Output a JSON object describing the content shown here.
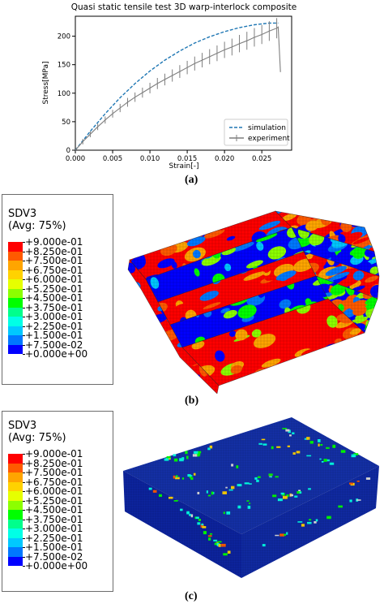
{
  "chart_data": {
    "type": "line",
    "title": "Quasi static tensile test 3D warp-interlock composite",
    "xlabel": "Strain[-]",
    "ylabel": "Stress[MPa]",
    "xlim": [
      0,
      0.029
    ],
    "ylim": [
      0,
      235
    ],
    "xticks": [
      "0.000",
      "0.005",
      "0.010",
      "0.015",
      "0.020",
      "0.025"
    ],
    "yticks": [
      "0",
      "50",
      "100",
      "150",
      "200"
    ],
    "legend_position": "lower-right",
    "grid": false,
    "series": [
      {
        "name": "simulation",
        "style": "dashed",
        "color": "#1f77b4",
        "x": [
          0,
          0.002,
          0.004,
          0.006,
          0.008,
          0.01,
          0.012,
          0.014,
          0.016,
          0.018,
          0.02,
          0.022,
          0.024,
          0.026,
          0.0272
        ],
        "y": [
          0,
          33,
          64,
          92,
          117,
          139,
          158,
          174,
          188,
          199,
          208,
          215,
          220,
          223,
          223
        ]
      },
      {
        "name": "experiment",
        "style": "solid",
        "color": "#7f7f7f",
        "x": [
          0,
          0.001,
          0.002,
          0.003,
          0.004,
          0.005,
          0.006,
          0.007,
          0.008,
          0.009,
          0.01,
          0.011,
          0.012,
          0.013,
          0.014,
          0.015,
          0.016,
          0.017,
          0.018,
          0.019,
          0.02,
          0.021,
          0.022,
          0.023,
          0.024,
          0.025,
          0.026,
          0.027,
          0.0272,
          0.0275
        ],
        "y": [
          0,
          15,
          28,
          41,
          53,
          64,
          74,
          84,
          93,
          101,
          109,
          117,
          124,
          131,
          138,
          145,
          152,
          158,
          164,
          170,
          176,
          181,
          187,
          192,
          198,
          203,
          209,
          214,
          216,
          137
        ]
      }
    ]
  },
  "captions": {
    "a": "(a)",
    "b": "(b)",
    "c": "(c)"
  },
  "legends": [
    {
      "title1": "SDV3",
      "title2": "(Avg: 75%)",
      "values": [
        "+9.000e-01",
        "+8.250e-01",
        "+7.500e-01",
        "+6.750e-01",
        "+6.000e-01",
        "+5.250e-01",
        "+4.500e-01",
        "+3.750e-01",
        "+3.000e-01",
        "+2.250e-01",
        "+1.500e-01",
        "+7.500e-02",
        "+0.000e+00"
      ]
    },
    {
      "title1": "SDV3",
      "title2": "(Avg: 75%)",
      "values": [
        "+9.000e-01",
        "+8.250e-01",
        "+7.500e-01",
        "+6.750e-01",
        "+6.000e-01",
        "+5.250e-01",
        "+4.500e-01",
        "+3.750e-01",
        "+3.000e-01",
        "+2.250e-01",
        "+1.500e-01",
        "+7.500e-02",
        "+0.000e+00"
      ]
    }
  ],
  "contour_colors": [
    "#ff0000",
    "#ff5a00",
    "#ffa500",
    "#ffd200",
    "#e6ff00",
    "#8cff00",
    "#00ff00",
    "#00ff8c",
    "#00ffe6",
    "#00c8ff",
    "#0078ff",
    "#0000ff"
  ]
}
